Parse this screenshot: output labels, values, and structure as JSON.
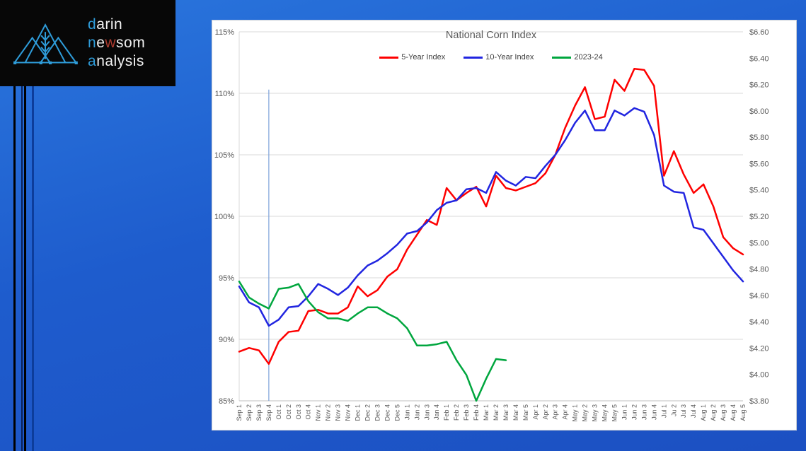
{
  "logo": {
    "words": [
      {
        "lead": "d",
        "rest": "arin"
      },
      {
        "lead": "n",
        "mid": "e",
        "accent": "w",
        "rest": "som"
      },
      {
        "lead": "a",
        "rest": "nalysis"
      }
    ],
    "accent_blue": "#2e9bd8",
    "accent_red": "#a93a2e"
  },
  "chart_data": {
    "type": "line",
    "title": "National Corn Index",
    "grid": true,
    "legend_position": "top",
    "categories": [
      "Sep 1",
      "Sep 2",
      "Sep 3",
      "Sep 4",
      "Oct 1",
      "Oct 2",
      "Oct 3",
      "Oct 4",
      "Nov 1",
      "Nov 2",
      "Nov 3",
      "Nov 4",
      "Dec 1",
      "Dec 2",
      "Dec 3",
      "Dec 4",
      "Dec 5",
      "Jan 1",
      "Jan 2",
      "Jan 3",
      "Jan 4",
      "Feb 1",
      "Feb 2",
      "Feb 3",
      "Feb 4",
      "Mar 1",
      "Mar 2",
      "Mar 3",
      "Mar 4",
      "Mar 5",
      "Apr 1",
      "Apr 2",
      "Apr 3",
      "Apr 4",
      "May 1",
      "May 2",
      "May 3",
      "May 4",
      "May 5",
      "Jun 1",
      "Jun 2",
      "Jun 3",
      "Jun 4",
      "Jul 1",
      "Ju 2",
      "Jul 3",
      "Jul 4",
      "Aug 1",
      "Aug 2",
      "Aug 3",
      "Aug 4",
      "Aug 5"
    ],
    "series": [
      {
        "name": "5-Year Index",
        "color": "#fe0000",
        "values": [
          89.0,
          89.3,
          89.1,
          88.0,
          89.8,
          90.6,
          90.7,
          92.3,
          92.4,
          92.1,
          92.1,
          92.6,
          94.3,
          93.5,
          94.0,
          95.1,
          95.7,
          97.3,
          98.5,
          99.7,
          99.3,
          102.3,
          101.3,
          101.9,
          102.4,
          100.8,
          103.3,
          102.3,
          102.1,
          102.4,
          102.7,
          103.5,
          105.0,
          107.2,
          109.0,
          110.5,
          107.9,
          108.1,
          111.1,
          110.2,
          112.0,
          111.9,
          110.6,
          103.3,
          105.3,
          103.4,
          101.9,
          102.6,
          100.8,
          98.3,
          97.4,
          96.9
        ]
      },
      {
        "name": "10-Year Index",
        "color": "#2125e0",
        "values": [
          94.3,
          93.0,
          92.6,
          91.1,
          91.6,
          92.6,
          92.7,
          93.5,
          94.5,
          94.1,
          93.6,
          94.2,
          95.2,
          96.0,
          96.4,
          97.0,
          97.7,
          98.6,
          98.8,
          99.5,
          100.5,
          101.1,
          101.3,
          102.2,
          102.3,
          101.9,
          103.6,
          102.9,
          102.5,
          103.2,
          103.1,
          104.1,
          105.0,
          106.2,
          107.6,
          108.6,
          107.0,
          107.0,
          108.6,
          108.2,
          108.8,
          108.5,
          106.6,
          102.5,
          102.0,
          101.9,
          99.1,
          98.9,
          97.8,
          96.7,
          95.6,
          94.7
        ]
      },
      {
        "name": "2023-24",
        "color": "#00a63e",
        "values": [
          94.7,
          93.4,
          92.9,
          92.5,
          94.1,
          94.2,
          94.5,
          93.1,
          92.2,
          91.7,
          91.7,
          91.5,
          92.1,
          92.6,
          92.6,
          92.1,
          91.7,
          90.9,
          89.5,
          89.5,
          89.6,
          89.8,
          88.3,
          87.1,
          85.0,
          86.8,
          88.4,
          88.3
        ]
      }
    ],
    "left_axis": {
      "ticks": [
        "115%",
        "110%",
        "105%",
        "100%",
        "95%",
        "90%",
        "85%"
      ],
      "min": 85,
      "max": 115,
      "unit": "%"
    },
    "right_axis": {
      "ticks": [
        "$6.60",
        "$6.40",
        "$6.20",
        "$6.00",
        "$5.80",
        "$5.60",
        "$5.40",
        "$5.20",
        "$5.00",
        "$4.80",
        "$4.60",
        "$4.40",
        "$4.20",
        "$4.00",
        "$3.80"
      ],
      "min": 3.8,
      "max": 6.6,
      "unit": "$"
    },
    "marker_line": {
      "category": "Sep 4",
      "index": 3,
      "top_value": 110.3,
      "bottom_value": 85,
      "color": "#7da1d9"
    },
    "gridline_color": "#d9d9d9",
    "axis_line_color": "#bfbfbf"
  }
}
